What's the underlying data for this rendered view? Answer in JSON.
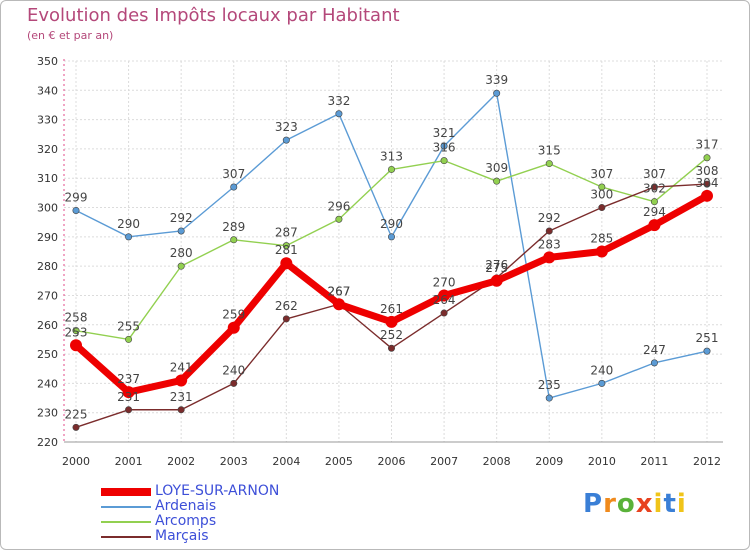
{
  "title": "Evolution des Impôts locaux par Habitant",
  "subtitle": "(en € et par an)",
  "logo": "Proxiti",
  "chart_data": {
    "type": "line",
    "title": "Evolution des Impôts locaux par Habitant",
    "ylabel": "(en € et par an)",
    "xlabel": "",
    "ylim": [
      220,
      350
    ],
    "yticks": [
      220,
      230,
      240,
      250,
      260,
      270,
      280,
      290,
      300,
      310,
      320,
      330,
      340,
      350
    ],
    "categories": [
      "2000",
      "2001",
      "2002",
      "2003",
      "2004",
      "2005",
      "2006",
      "2007",
      "2008",
      "2009",
      "2010",
      "2011",
      "2012"
    ],
    "grid": true,
    "legend_position": "bottom-left",
    "series": [
      {
        "name": "LOYE-SUR-ARNON",
        "color": "#ee0000",
        "values": [
          253,
          237,
          241,
          259,
          281,
          267,
          261,
          270,
          275,
          283,
          285,
          294,
          304
        ]
      },
      {
        "name": "Ardenais",
        "color": "#5b9bd5",
        "values": [
          299,
          290,
          292,
          307,
          323,
          332,
          290,
          321,
          339,
          235,
          240,
          247,
          251
        ]
      },
      {
        "name": "Arcomps",
        "color": "#92d050",
        "values": [
          258,
          255,
          280,
          289,
          287,
          296,
          313,
          316,
          309,
          315,
          307,
          302,
          317
        ]
      },
      {
        "name": "Marçais",
        "color": "#7b2c2c",
        "values": [
          225,
          231,
          231,
          240,
          262,
          267,
          252,
          264,
          276,
          292,
          300,
          307,
          308
        ]
      }
    ]
  }
}
